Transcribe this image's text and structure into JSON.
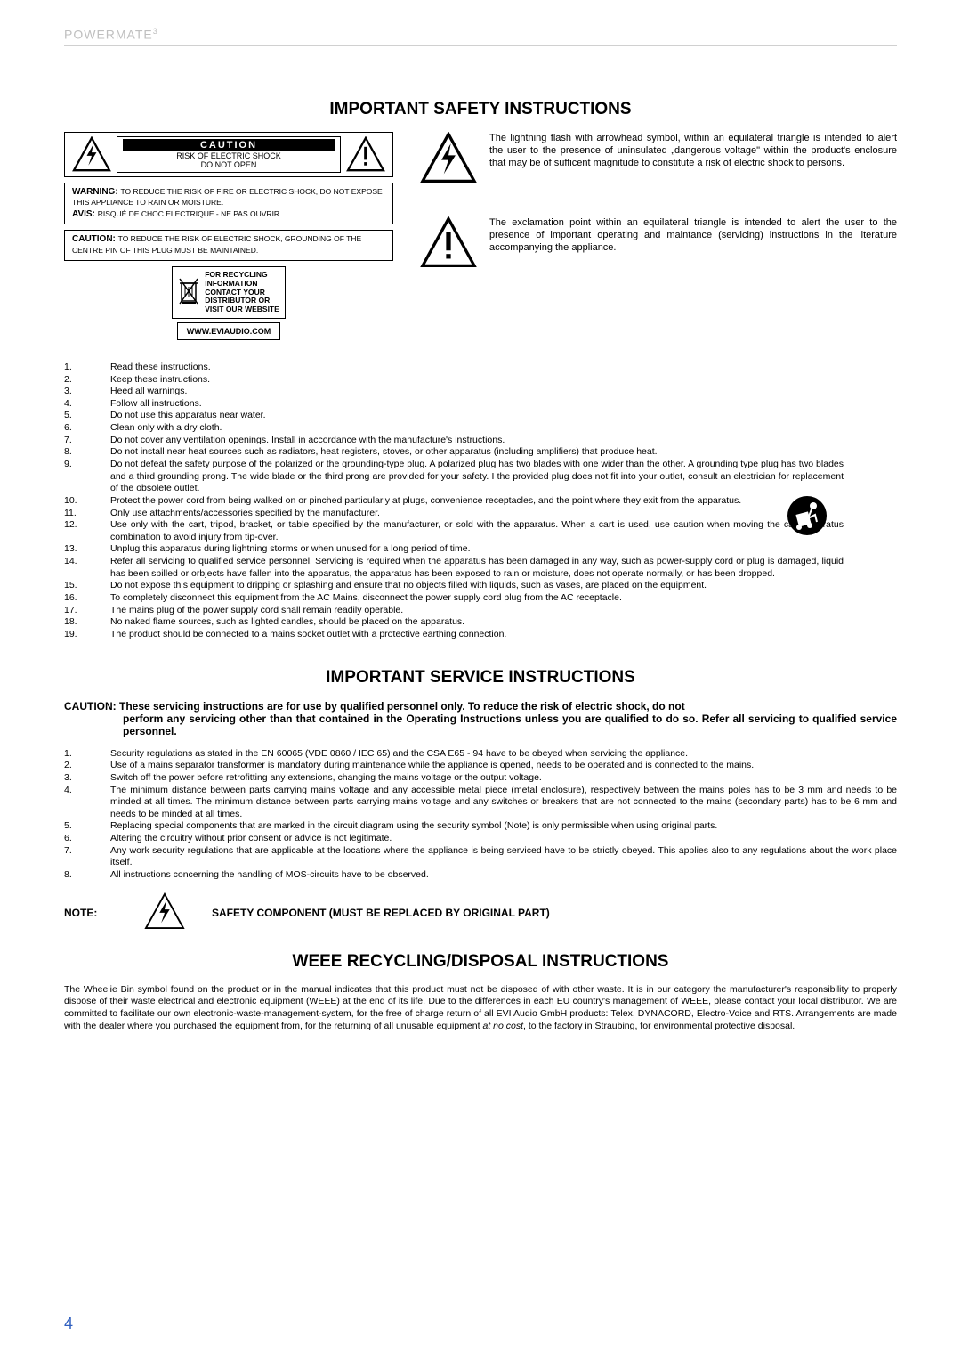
{
  "brand": "POWERMATE",
  "brand_sup": "3",
  "page_number": "4",
  "colors": {
    "brand_gray": "#bfbfbf",
    "page_num": "#2f5fbf",
    "rule": "#d0d0d0"
  },
  "safety": {
    "title": "IMPORTANT SAFETY INSTRUCTIONS",
    "caution_title": "CAUTION",
    "caution_sub1": "RISK OF ELECTRIC SHOCK",
    "caution_sub2": "DO NOT OPEN",
    "warning_label": "WARNING:",
    "warning_text": "TO REDUCE THE RISK OF FIRE OR ELECTRIC SHOCK, DO NOT EXPOSE THIS APPLIANCE TO RAIN OR MOISTURE.",
    "avis_label": "AVIS:",
    "avis_text": "RISQUÉ DE CHOC ELECTRIQUE - NE PAS OUVRIR",
    "caution2_label": "CAUTION:",
    "caution2_text": "TO REDUCE THE RISK OF ELECTRIC SHOCK, GROUNDING OF THE CENTRE PIN OF THIS PLUG MUST BE MAINTAINED.",
    "recycle_text": "FOR RECYCLING\nINFORMATION\nCONTACT YOUR\nDISTRIBUTOR OR\nVISIT OUR WEBSITE",
    "website": "WWW.EVIAUDIO.COM",
    "lightning_desc": "The lightning flash with arrowhead symbol, within an equilateral triangle is intended to alert the user to the presence of uninsulated „dangerous voltage\" within the product's enclosure that may be of sufficent magnitude to constitute a risk of electric shock to persons.",
    "exclam_desc": "The exclamation point within an equilateral triangle is intended to alert the user to the presence of important operating and maintance (servicing) instructions in the literature accompanying the appliance.",
    "items": [
      "Read these instructions.",
      "Keep these instructions.",
      "Heed all warnings.",
      "Follow all instructions.",
      "Do not use this apparatus near water.",
      "Clean only with a dry cloth.",
      "Do not cover any ventilation openings. Install in accordance with the manufacture's instructions.",
      "Do not install near heat sources such as radiators, heat registers, stoves, or other apparatus (including amplifiers) that produce heat.",
      "Do not defeat the safety purpose of the polarized or the grounding-type plug. A polarized plug has two blades with one wider than the other. A grounding type plug has two blades and a third grounding prong. The wide blade or the third prong are provided for your safety. I the provided plug does not fit into your outlet, consult an electrician for replacement of the obsolete outlet.",
      "Protect the power cord from being walked on or pinched particularly at plugs, convenience receptacles, and the point where they exit from the apparatus.",
      "Only use attachments/accessories specified by the manufacturer.",
      "Use only with the cart, tripod, bracket, or table specified by the manufacturer, or sold with the apparatus. When a cart is used, use caution when moving the cart/apparatus combination to avoid injury from tip-over.",
      "Unplug this apparatus during lightning storms or when unused for a long period of time.",
      "Refer all servicing to qualified service personnel. Servicing is required when the apparatus has been damaged in any way, such as power-supply cord or plug is damaged, liquid has been spilled or orbjects have fallen into the apparatus, the apparatus has been exposed to rain or moisture, does not operate normally, or has been dropped.",
      "Do not expose this equipment to dripping or splashing and ensure that no objects filled with liquids, such as vases, are placed on the equipment.",
      "To completely disconnect this equipment from the AC Mains, disconnect the power supply cord plug from the AC receptacle.",
      "The mains plug of the power supply cord shall remain readily operable.",
      "No naked flame sources, such as lighted candles, should be placed on the apparatus.",
      "The product should be connected to a mains socket outlet with a protective earthing connection."
    ]
  },
  "service": {
    "title": "IMPORTANT SERVICE INSTRUCTIONS",
    "caution_lead": "CAUTION: These servicing instructions are for use by qualified personnel only. To reduce the risk of electric shock, do not",
    "caution_rest": "perform any servicing other than that contained in the Operating Instructions unless you are qualified to do so. Refer all servicing to qualified service personnel.",
    "items": [
      "Security regulations as stated in the EN 60065 (VDE 0860 / IEC 65) and the CSA E65 - 94 have to be obeyed when servicing the appliance.",
      "Use of a mains separator transformer is mandatory during maintenance while the appliance is opened, needs to be operated and is connected to the mains.",
      "Switch off the power before retrofitting any extensions, changing the mains voltage or the output voltage.",
      "The minimum distance between parts carrying mains voltage and any accessible metal piece (metal enclosure), respectively between the mains poles has to be 3 mm and needs to be minded at all times. The minimum distance between parts carrying mains voltage and any switches or breakers that are not connected to the mains (secondary parts) has to be 6 mm and needs to be minded at all times.",
      "Replacing special components that are marked in the circuit diagram using the security symbol (Note) is only permissible when using original parts.",
      "Altering the circuitry without prior consent or advice is not legitimate.",
      "Any work security regulations that are applicable at the locations where the appliance is being serviced have to be strictly obeyed. This applies also to any regulations about the work place itself.",
      "All instructions concerning the handling of MOS-circuits have to be observed."
    ],
    "note_label": "NOTE:",
    "note_text": "SAFETY COMPONENT (MUST BE REPLACED BY ORIGINAL PART)"
  },
  "weee": {
    "title": "WEEE RECYCLING/DISPOSAL INSTRUCTIONS",
    "body_pre": "The Wheelie Bin symbol found on the product or in the manual indicates that this product must not be disposed of with other waste. It is in our category the manufacturer's responsibility to properly dispose of their waste electrical and electronic equipment (WEEE) at the end of its life. Due to the differences in each EU country's management of WEEE, please contact your local distributor. We are committed to facilitate our own electronic-waste-management-system, for the free of charge return of all EVI Audio GmbH products: Telex, DYNACORD, Electro-Voice and RTS. Arrangements are made with the dealer where you purchased the equipment from, for the returning of all unusable equipment ",
    "body_em": "at no cost",
    "body_post": ", to the factory in Straubing, for environmental protective disposal."
  }
}
